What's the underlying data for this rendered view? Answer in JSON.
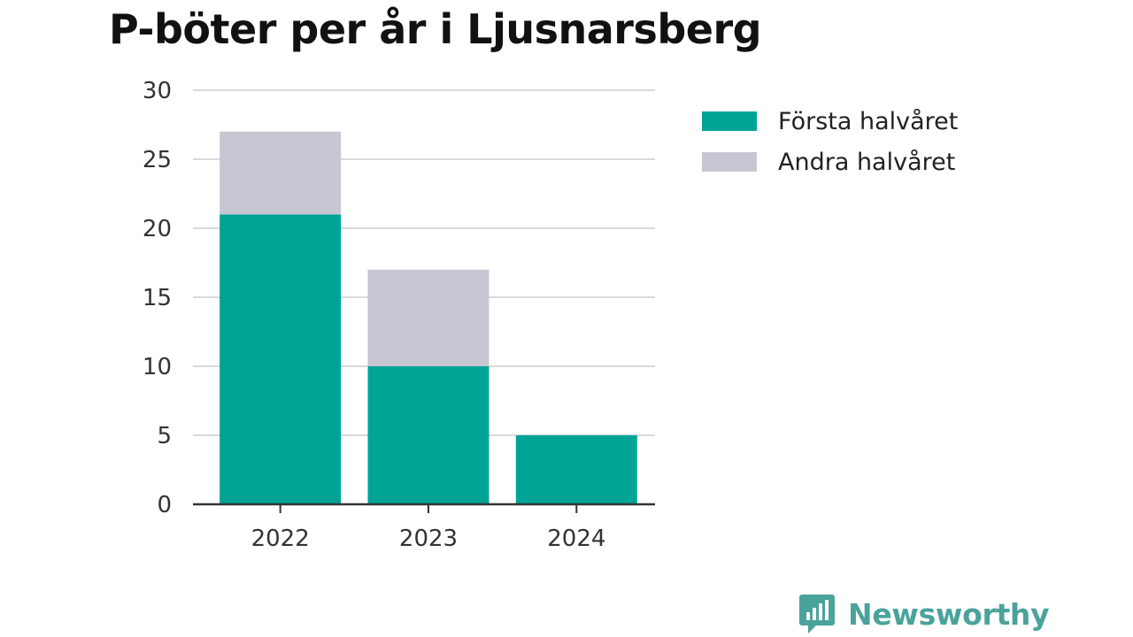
{
  "chart_data": {
    "type": "bar",
    "stacked": true,
    "title": "P-böter per år i Ljusnarsberg",
    "categories": [
      "2022",
      "2023",
      "2024"
    ],
    "series": [
      {
        "name": "Första halvåret",
        "values": [
          21,
          10,
          5
        ],
        "color": "#00a497"
      },
      {
        "name": "Andra halvåret",
        "values": [
          6,
          7,
          0
        ],
        "color": "#c8c6d2"
      }
    ],
    "xlabel": "",
    "ylabel": "",
    "ylim": [
      0,
      30
    ],
    "yticks": [
      0,
      5,
      10,
      15,
      20,
      25,
      30
    ],
    "grid": true,
    "legend_position": "right"
  },
  "brand": {
    "name": "Newsworthy",
    "logo_icon": "bar-chart-speech-bubble-icon",
    "color": "#4aa39b"
  }
}
